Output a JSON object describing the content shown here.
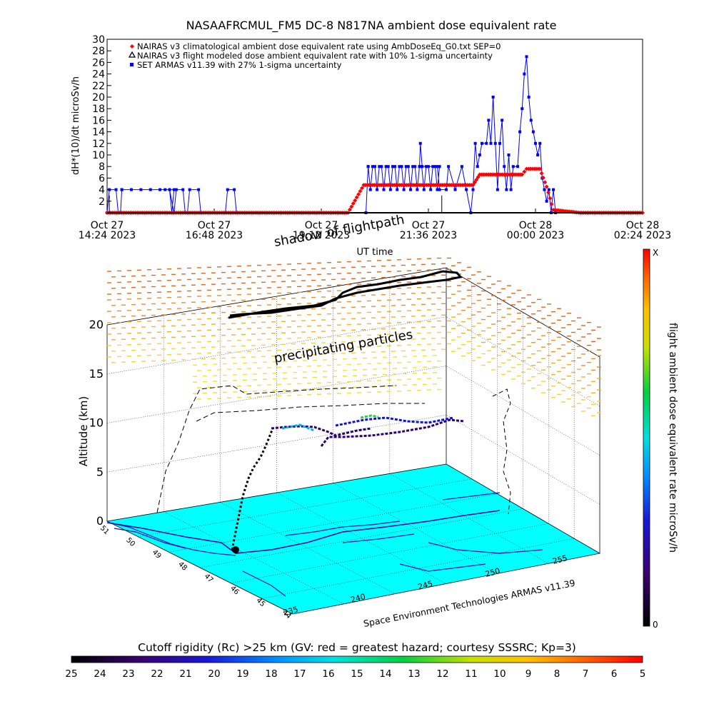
{
  "chart_data": [
    {
      "type": "line",
      "title": "NASAAFRCMUL_FM5 DC-8   N817NA ambient dose equivalent rate",
      "ylabel": "dH*(10)/dt microSv/h",
      "xlabel": "UT time",
      "ylim": [
        0,
        30
      ],
      "yticks": [
        2,
        4,
        6,
        8,
        10,
        12,
        14,
        16,
        18,
        20,
        22,
        24,
        26,
        28,
        30
      ],
      "xlim_hours": [
        0,
        12
      ],
      "xticks": [
        {
          "h": 0,
          "l1": "Oct 27",
          "l2": "14:24 2023"
        },
        {
          "h": 2.4,
          "l1": "Oct 27",
          "l2": "16:48 2023"
        },
        {
          "h": 4.8,
          "l1": "Oct 27",
          "l2": "19:12 2023"
        },
        {
          "h": 7.2,
          "l1": "Oct 27",
          "l2": "21:36 2023"
        },
        {
          "h": 9.6,
          "l1": "Oct 28",
          "l2": "00:00 2023"
        },
        {
          "h": 12,
          "l1": "Oct 28",
          "l2": "02:24 2023"
        }
      ],
      "legend": "top-left",
      "series": [
        {
          "name": "NAIRAS v3 climatological ambient dose equivalent rate using AmbDoseEq_G0.txt SEP=0",
          "color": "#ff0000",
          "marker": "diamond",
          "x": [
            0,
            5.4,
            5.75,
            8.2,
            8.35,
            9.3,
            9.4,
            9.7,
            9.85,
            10.0,
            10.6,
            12.0
          ],
          "y": [
            0,
            0,
            4.8,
            4.8,
            6.6,
            6.6,
            7.6,
            7.6,
            4.5,
            0.5,
            0,
            0
          ]
        },
        {
          "name": "NAIRAS v3 flight modeled dose ambient equivalent rate with 10% 1-sigma uncertainty",
          "color": "#000000",
          "marker": "triangle",
          "x": [
            0,
            12
          ],
          "y": [
            0,
            0
          ]
        },
        {
          "name": "SET ARMAS v11.39 with 27% 1-sigma uncertainty",
          "color": "#0000ff",
          "marker": "square"
        }
      ]
    },
    {
      "type": "scatter",
      "title": "shadow of flightpath",
      "zlabel": "Altitude (km)",
      "zticks": [
        "0",
        "5",
        "10",
        "15",
        "20"
      ],
      "lat_ticks": [
        "44",
        "45",
        "46",
        "47",
        "48",
        "49",
        "50",
        "51"
      ],
      "lon_ticks": [
        "235",
        "240",
        "245",
        "250",
        "255"
      ],
      "annotation": "precipitating particles",
      "credit": "Space Environment Technologies ARMAS v11.39",
      "colorbar": {
        "label": "flight ambient dose equivalent rate microSv/h",
        "top": "X",
        "bottom": "0"
      }
    }
  ],
  "rc_bar": {
    "title": "Cutoff rigidity (Rc) >25 km (GV: red = greatest hazard; courtesy SSSRC; Kp=3)",
    "labels": [
      "25",
      "24",
      "23",
      "22",
      "21",
      "20",
      "19",
      "18",
      "17",
      "16",
      "15",
      "14",
      "13",
      "12",
      "11",
      "10",
      "9",
      "8",
      "7",
      "6",
      "5"
    ]
  }
}
